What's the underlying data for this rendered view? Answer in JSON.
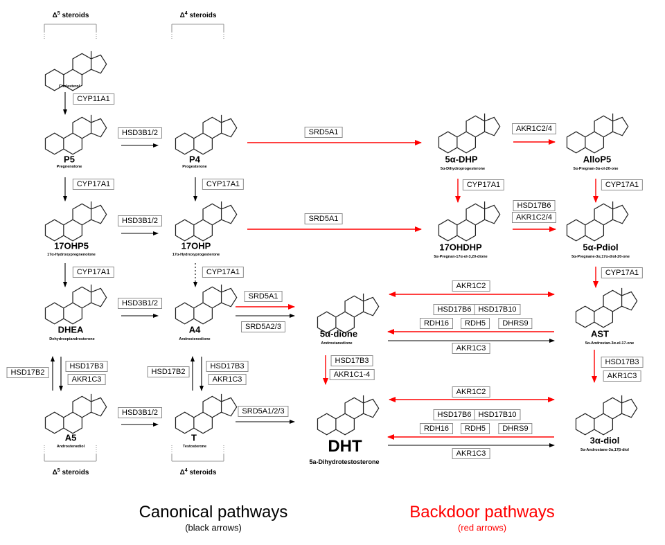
{
  "headers": {
    "delta": "Δ",
    "top_left_sup": "5",
    "top_right_sup": "4",
    "bottom_left_sup": "5",
    "bottom_right_sup": "4",
    "steroids": "steroids"
  },
  "molecules": [
    {
      "abbr": "",
      "name": "Cholesterol"
    },
    {
      "abbr": "P5",
      "name": "Pregnenolone"
    },
    {
      "abbr": "P4",
      "name": "Progesterone"
    },
    {
      "abbr": "5α-DHP",
      "name": "5α-Dihydroprogesterone"
    },
    {
      "abbr": "AlloP5",
      "name": "5α-Pregnan-3α-ol-20-one"
    },
    {
      "abbr": "17OHP5",
      "name": "17α-Hydroxypregnenolone"
    },
    {
      "abbr": "17OHP",
      "name": "17α-Hydroxyprogesterone"
    },
    {
      "abbr": "17OHDHP",
      "name": "5α-Pregnan-17α-ol-3,20-dione"
    },
    {
      "abbr": "5α-Pdiol",
      "name": "5α-Pregnane-3α,17α-diol-20-one"
    },
    {
      "abbr": "DHEA",
      "name": "Dehydroepiandrosterone"
    },
    {
      "abbr": "A4",
      "name": "Androstenedione"
    },
    {
      "abbr": "5α-dione",
      "name": "Androstanedione"
    },
    {
      "abbr": "AST",
      "name": "5α-Androstan-3α-ol-17-one"
    },
    {
      "abbr": "A5",
      "name": "Androstenediol"
    },
    {
      "abbr": "T",
      "name": "Testosterone"
    },
    {
      "abbr": "DHT",
      "name": "5a-Dihydrotestosterone"
    },
    {
      "abbr": "3α-diol",
      "name": "5α-Androstane-3α,17β-diol"
    }
  ],
  "enzymes": [
    "CYP11A1",
    "HSD3B1/2",
    "SRD5A1",
    "AKR1C2/4",
    "CYP17A1",
    "CYP17A1",
    "CYP17A1",
    "CYP17A1",
    "HSD3B1/2",
    "SRD5A1",
    "HSD17B6",
    "AKR1C2/4",
    "CYP17A1",
    "CYP17A1",
    "CYP17A1",
    "HSD3B1/2",
    "SRD5A1",
    "SRD5A2/3",
    "AKR1C2",
    "HSD17B6",
    "HSD17B10",
    "RDH16",
    "RDH5",
    "DHRS9",
    "AKR1C3",
    "HSD17B2",
    "HSD17B3",
    "AKR1C3",
    "HSD17B2",
    "HSD17B3",
    "AKR1C3",
    "HSD17B3",
    "AKR1C1-4",
    "HSD17B3",
    "AKR1C3",
    "HSD3B1/2",
    "SRD5A1/2/3",
    "AKR1C2",
    "HSD17B6",
    "HSD17B10",
    "RDH16",
    "RDH5",
    "DHRS9",
    "AKR1C3"
  ],
  "legend": {
    "canonical_title": "Canonical pathways",
    "canonical_sub": "(black arrows)",
    "backdoor_title": "Backdoor pathways",
    "backdoor_sub": "(red arrows)"
  },
  "colors": {
    "canonical": "#000000",
    "backdoor": "#ff0000",
    "box_border": "#8a8a8a"
  }
}
